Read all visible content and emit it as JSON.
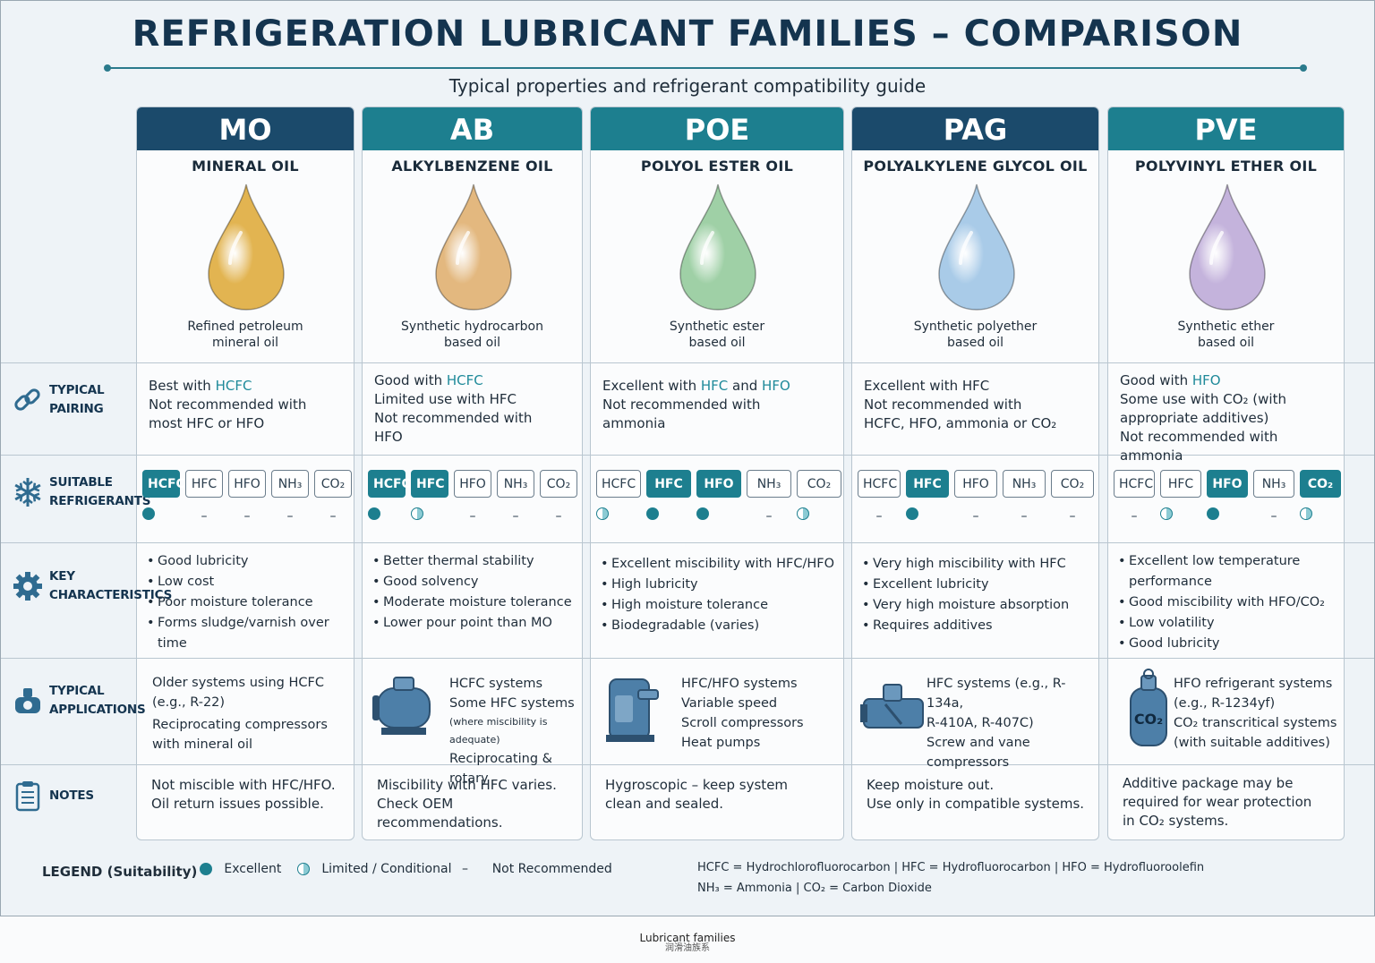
{
  "title": "REFRIGERATION LUBRICANT FAMILIES – COMPARISON",
  "subtitle": "Typical properties and refrigerant compatibility guide",
  "row_labels": {
    "pairing": [
      "TYPICAL",
      "PAIRING"
    ],
    "refrigerants": [
      "SUITABLE",
      "REFRIGERANTS"
    ],
    "characteristics": [
      "KEY",
      "CHARACTERISTICS"
    ],
    "applications": [
      "TYPICAL",
      "APPLICATIONS"
    ],
    "notes": [
      "NOTES"
    ]
  },
  "refrigerant_chips": [
    "HCFC",
    "HFC",
    "HFO",
    "NH₃",
    "CO₂"
  ],
  "colors": {
    "header_dark": "#1b4a6b",
    "header_teal": "#1d7f8f",
    "accent": "#1f8a9a",
    "title": "#14344f"
  },
  "columns": [
    {
      "abbr": "MO",
      "name": "MINERAL OIL",
      "drop_color": "#e2b451",
      "description": [
        "Refined petroleum",
        "mineral oil"
      ],
      "pairing": [
        [
          {
            "t": "Best with "
          },
          {
            "t": "HCFC",
            "hl": true
          }
        ],
        [
          {
            "t": "Not recommended with"
          }
        ],
        [
          {
            "t": "most HFC or HFO"
          }
        ]
      ],
      "suitable": [
        "HCFC"
      ],
      "suitability": [
        "excellent",
        "not",
        "not",
        "not",
        "not"
      ],
      "characteristics": [
        "Good lubricity",
        "Low cost",
        "Poor moisture tolerance",
        "Forms sludge/varnish over time"
      ],
      "app_icon": "none",
      "applications": [
        "Older systems using HCFC",
        "(e.g., R-22)",
        "Reciprocating compressors",
        "with mineral oil"
      ],
      "notes": [
        "Not miscible with HFC/HFO.",
        "Oil return issues possible."
      ]
    },
    {
      "abbr": "AB",
      "name": "ALKYLBENZENE OIL",
      "drop_color": "#e3b87f",
      "description": [
        "Synthetic hydrocarbon",
        "based oil"
      ],
      "pairing": [
        [
          {
            "t": "Good with "
          },
          {
            "t": "HCFC",
            "hl": true
          }
        ],
        [
          {
            "t": "Limited use with HFC"
          }
        ],
        [
          {
            "t": "Not recommended with"
          }
        ],
        [
          {
            "t": "HFO"
          }
        ]
      ],
      "suitable": [
        "HCFC",
        "HFC"
      ],
      "suitability": [
        "excellent",
        "limited",
        "not",
        "not",
        "not"
      ],
      "characteristics": [
        "Better thermal stability",
        "Good solvency",
        "Moderate moisture tolerance",
        "Lower pour point than MO"
      ],
      "app_icon": "compressor-icon",
      "applications": [
        "HCFC systems",
        "Some HFC systems",
        "(where miscibility is adequate)",
        "Reciprocating & rotary"
      ],
      "notes": [
        "Miscibility with HFC varies.",
        "Check OEM recommendations."
      ]
    },
    {
      "abbr": "POE",
      "name": "POLYOL ESTER OIL",
      "drop_color": "#9fd0a6",
      "description": [
        "Synthetic ester",
        "based oil"
      ],
      "pairing": [
        [
          {
            "t": "Excellent with "
          },
          {
            "t": "HFC",
            "hl": true
          },
          {
            "t": " and "
          },
          {
            "t": "HFO",
            "hl": true
          }
        ],
        [
          {
            "t": "Not recommended with"
          }
        ],
        [
          {
            "t": "ammonia"
          }
        ]
      ],
      "suitable": [
        "HFC",
        "HFO"
      ],
      "suitability": [
        "limited",
        "excellent",
        "excellent",
        "not",
        "limited"
      ],
      "characteristics": [
        "Excellent miscibility with HFC/HFO",
        "High lubricity",
        "High moisture tolerance",
        "Biodegradable (varies)"
      ],
      "app_icon": "scroll-compressor-icon",
      "applications": [
        "HFC/HFO systems",
        "Variable speed",
        "Scroll compressors",
        "Heat pumps"
      ],
      "notes": [
        "Hygroscopic – keep system",
        "clean and sealed."
      ]
    },
    {
      "abbr": "PAG",
      "name": "POLYALKYLENE GLYCOL OIL",
      "drop_color": "#a9cbe8",
      "description": [
        "Synthetic polyether",
        "based oil"
      ],
      "pairing": [
        [
          {
            "t": "Excellent with HFC"
          }
        ],
        [
          {
            "t": "Not recommended with"
          }
        ],
        [
          {
            "t": "HCFC, HFO, ammonia or CO₂"
          }
        ]
      ],
      "suitable": [
        "HFC"
      ],
      "suitability": [
        "not",
        "excellent",
        "not",
        "not",
        "not"
      ],
      "characteristics": [
        "Very high miscibility with HFC",
        "Excellent lubricity",
        "Very high moisture absorption",
        "Requires additives"
      ],
      "app_icon": "screw-compressor-icon",
      "applications": [
        "HFC systems (e.g., R-134a,",
        "R-410A, R-407C)",
        "Screw and vane",
        "compressors"
      ],
      "notes": [
        "Keep moisture out.",
        "Use only in compatible systems."
      ]
    },
    {
      "abbr": "PVE",
      "name": "POLYVINYL ETHER OIL",
      "drop_color": "#c4b3dc",
      "description": [
        "Synthetic ether",
        "based oil"
      ],
      "pairing": [
        [
          {
            "t": "Good with "
          },
          {
            "t": "HFO",
            "hl": true
          }
        ],
        [
          {
            "t": "Some use with CO₂ (with"
          }
        ],
        [
          {
            "t": "appropriate additives)"
          }
        ],
        [
          {
            "t": "Not recommended with ammonia"
          }
        ]
      ],
      "suitable": [
        "HFO",
        "CO₂"
      ],
      "suitability": [
        "not",
        "limited",
        "excellent",
        "not",
        "limited"
      ],
      "characteristics": [
        "Excellent low temperature performance",
        "Good miscibility with HFO/CO₂",
        "Low volatility",
        "Good lubricity"
      ],
      "app_icon": "co2-cylinder-icon",
      "applications": [
        "HFO refrigerant systems",
        "(e.g., R-1234yf)",
        "CO₂ transcritical systems",
        "(with suitable additives)"
      ],
      "notes": [
        "Additive package may be",
        "required for wear protection",
        "in CO₂ systems."
      ]
    }
  ],
  "legend": {
    "title": "LEGEND (Suitability)",
    "excellent": "Excellent",
    "limited": "Limited / Conditional",
    "not": "Not Recommended",
    "abbr_line1": "HCFC = Hydrochlorofluorocarbon  |  HFC = Hydrofluorocarbon  |  HFO = Hydrofluoroolefin",
    "abbr_line2": "NH₃ = Ammonia  |  CO₂ = Carbon Dioxide"
  },
  "caption": "Lubricant families",
  "caption_sub": "润滑油族系"
}
